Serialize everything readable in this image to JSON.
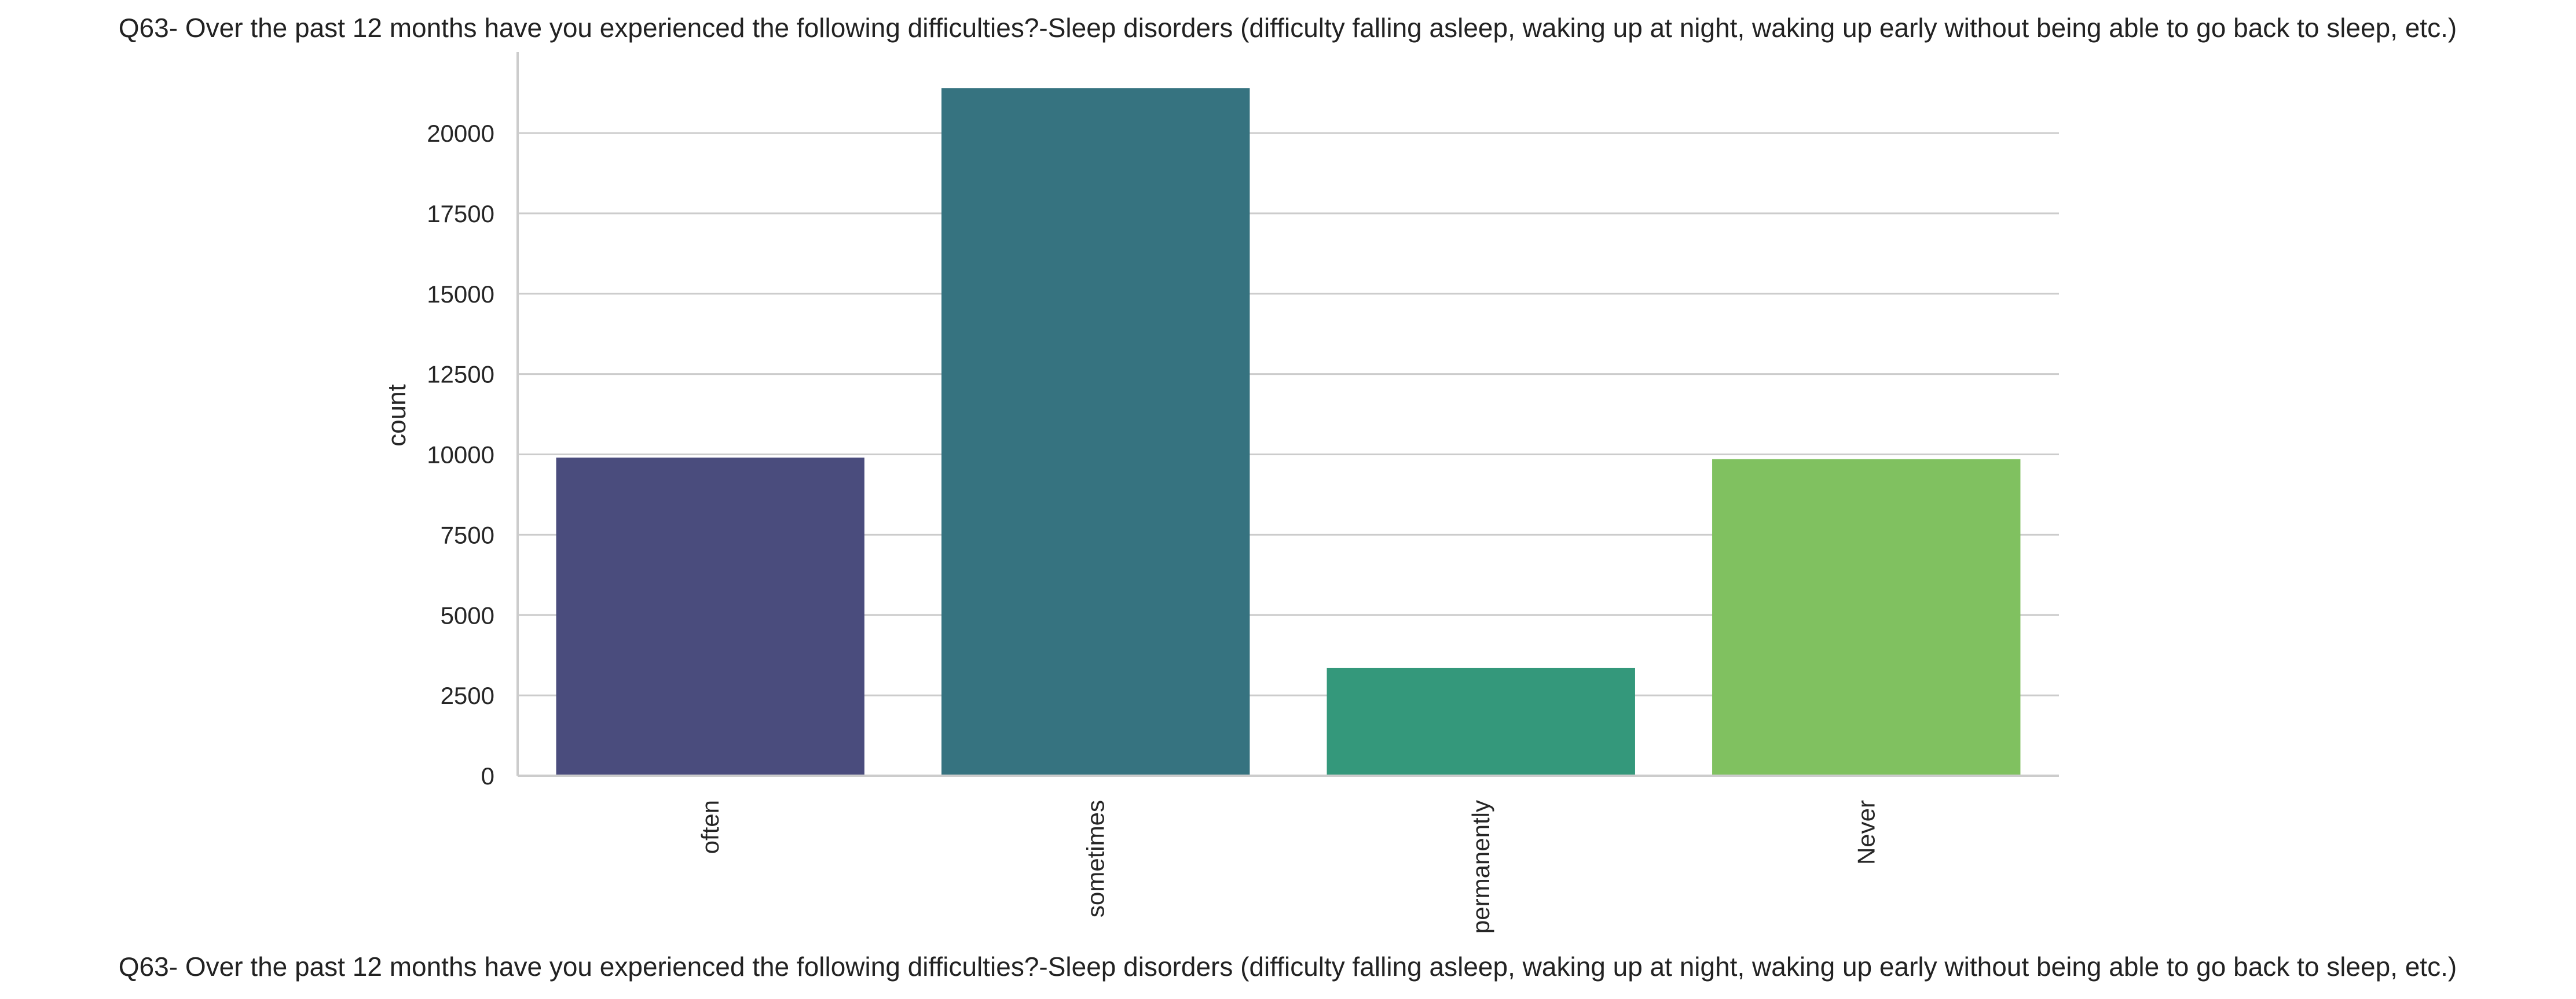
{
  "chart_data": {
    "type": "bar",
    "title": "Q63- Over the past 12 months have you experienced the following difficulties?-Sleep disorders (difficulty falling asleep, waking up at night, waking up early without being able to go back to sleep, etc.)",
    "xlabel": "Q63- Over the past 12 months have you experienced the following difficulties?-Sleep disorders (difficulty falling asleep, waking up at night, waking up early without being able to go back to sleep, etc.)",
    "ylabel": "count",
    "categories": [
      "often",
      "sometimes",
      "permanently",
      "Never"
    ],
    "values": [
      9900,
      21400,
      3350,
      9850
    ],
    "colors": [
      "#4a4c7d",
      "#367380",
      "#34987b",
      "#80c160"
    ],
    "yticks": [
      0,
      2500,
      5000,
      7500,
      10000,
      12500,
      15000,
      17500,
      20000
    ],
    "ylim": [
      0,
      22500
    ],
    "grid": true,
    "legend": "none"
  }
}
